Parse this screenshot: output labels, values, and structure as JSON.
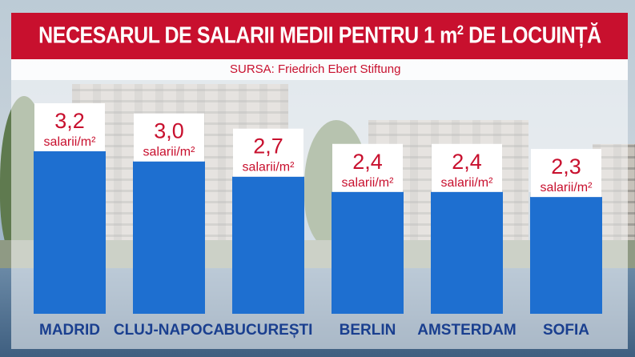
{
  "title_main": "NECESARUL DE SALARII MEDII PENTRU 1 m",
  "title_sup": "2",
  "title_tail": " DE LOCUINȚĂ",
  "source": "SURSA: Friedrich Ebert Stiftung",
  "colors": {
    "accent": "#c8102e",
    "bar": "#1e6fd0",
    "label": "#1a3f8f"
  },
  "chart_data": {
    "type": "bar",
    "categories": [
      "MADRID",
      "CLUJ-NAPOCA",
      "BUCUREȘTI",
      "BERLIN",
      "AMSTERDAM",
      "SOFIA"
    ],
    "values": [
      3.2,
      3.0,
      2.7,
      2.4,
      2.4,
      2.3
    ],
    "value_labels": [
      "3,2",
      "3,0",
      "2,7",
      "2,4",
      "2,4",
      "2,3"
    ],
    "unit_label": "salarii/m²",
    "ylim": [
      0,
      3.2
    ]
  }
}
